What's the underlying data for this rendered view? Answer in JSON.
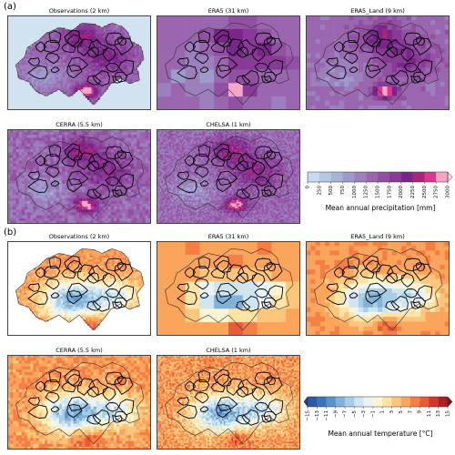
{
  "figure": {
    "panel_a": {
      "letter": "(a)",
      "titles": [
        "Observations (2 km)",
        "ERA5 (31 km)",
        "ERA5_Land (9 km)",
        "CERRA (5.5 km)",
        "CHELSA (1 km)"
      ],
      "colorbar_label": "Mean annual precipitation [mm]",
      "colorbar_ticks": [
        "0",
        "250",
        "500",
        "750",
        "1000",
        "1250",
        "1500",
        "1750",
        "2000",
        "2250",
        "2500",
        "2750",
        "3000"
      ],
      "colors": [
        "#c6dbef",
        "#b2c8e3",
        "#a6b4d8",
        "#9e9acb",
        "#9c80bd",
        "#9a66b0",
        "#9250a3",
        "#873a96",
        "#7a2589",
        "#a8247f",
        "#d9388f",
        "#f5a6c8"
      ],
      "extend_color": "#fcd3e2",
      "background": "#d2e3f0"
    },
    "panel_b": {
      "letter": "(b)",
      "titles": [
        "Observations (2 km)",
        "ERA5 (31 km)",
        "ERA5_Land (9 km)",
        "CERRA (5.5 km)",
        "CHELSA (1 km)"
      ],
      "colorbar_label": "Mean annual temperature [°C]",
      "colorbar_ticks": [
        "−15",
        "−13",
        "−11",
        "−9",
        "−7",
        "−5",
        "−3",
        "−1",
        "1",
        "3",
        "5",
        "7",
        "9",
        "11",
        "13",
        "15"
      ],
      "colors": [
        "#2c5aa0",
        "#3b74b8",
        "#5b93c9",
        "#82b2d8",
        "#a9cde6",
        "#cfe5f0",
        "#eaf3f6",
        "#fdf4d2",
        "#fde4a6",
        "#fdc67c",
        "#fba45c",
        "#f57e44",
        "#e95a36",
        "#d1352b",
        "#b01c24"
      ],
      "extend_low": "#1f3f8a",
      "extend_high": "#7f0a1c"
    }
  },
  "chart_data": [
    {
      "type": "heatmap",
      "title": "Observations (2 km)",
      "colorbar_label": "Mean annual precipitation [mm]",
      "vlim": [
        0,
        3000
      ]
    },
    {
      "type": "heatmap",
      "title": "ERA5 (31 km)",
      "vlim": [
        0,
        3000
      ]
    },
    {
      "type": "heatmap",
      "title": "ERA5_Land (9 km)",
      "vlim": [
        0,
        3000
      ]
    },
    {
      "type": "heatmap",
      "title": "CERRA (5.5 km)",
      "vlim": [
        0,
        3000
      ]
    },
    {
      "type": "heatmap",
      "title": "CHELSA (1 km)",
      "vlim": [
        0,
        3000
      ]
    },
    {
      "type": "heatmap",
      "title": "Observations (2 km)",
      "colorbar_label": "Mean annual temperature [°C]",
      "vlim": [
        -15,
        15
      ]
    },
    {
      "type": "heatmap",
      "title": "ERA5 (31 km)",
      "vlim": [
        -15,
        15
      ]
    },
    {
      "type": "heatmap",
      "title": "ERA5_Land (9 km)",
      "vlim": [
        -15,
        15
      ]
    },
    {
      "type": "heatmap",
      "title": "CERRA (5.5 km)",
      "vlim": [
        -15,
        15
      ]
    },
    {
      "type": "heatmap",
      "title": "CHELSA (1 km)",
      "vlim": [
        -15,
        15
      ]
    }
  ]
}
